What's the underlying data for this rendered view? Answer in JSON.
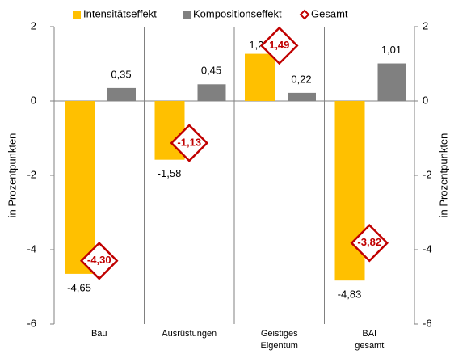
{
  "chart_data": {
    "type": "bar",
    "categories": [
      "Bau",
      "Ausrüstungen",
      "Geistiges Eigentum",
      "BAI gesamt"
    ],
    "series": [
      {
        "name": "Intensitätseffekt",
        "color": "#FFC000",
        "values": [
          -4.65,
          -1.58,
          1.27,
          -4.83
        ],
        "value_labels": [
          "-4,65",
          "-1,58",
          "1,27",
          "-4,83"
        ]
      },
      {
        "name": "Kompositionseffekt",
        "color": "#808080",
        "values": [
          0.35,
          0.45,
          0.22,
          1.01
        ],
        "value_labels": [
          "0,35",
          "0,45",
          "0,22",
          "1,01"
        ]
      },
      {
        "name": "Gesamt",
        "color": "#C00000",
        "marker": "diamond",
        "values": [
          -4.3,
          -1.13,
          1.49,
          -3.82
        ],
        "value_labels": [
          "-4,30",
          "-1,13",
          "1,49",
          "-3,82"
        ]
      }
    ],
    "ylabel": "in Prozentpunkten",
    "y2label": "in Prozentpunkten",
    "ylim": [
      -6,
      2
    ],
    "yticks": [
      -6,
      -4,
      -2,
      0,
      2
    ],
    "y2lim": [
      -6,
      2
    ],
    "y2ticks": [
      -6,
      -4,
      -2,
      0,
      2
    ],
    "legend": "top"
  }
}
